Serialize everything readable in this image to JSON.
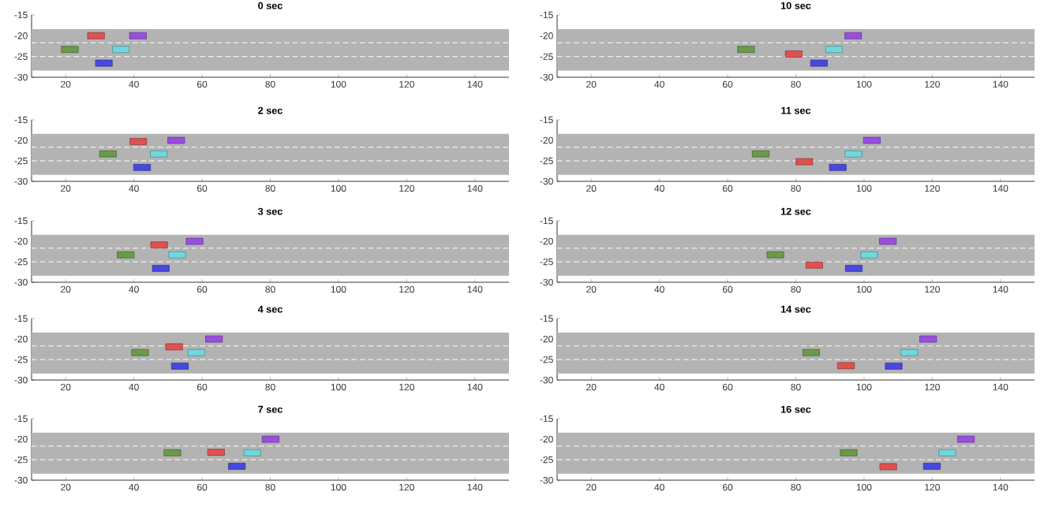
{
  "chart_data": [
    {
      "type": "scatter",
      "title": "0 sec",
      "marker": "square",
      "xlim": [
        10,
        150
      ],
      "ylim": [
        -30,
        -15
      ],
      "xticks": [
        20,
        40,
        60,
        80,
        100,
        120,
        140
      ],
      "yticks": [
        -30,
        -25,
        -20,
        -15
      ],
      "bands": [
        {
          "axis": "y",
          "from": -28.4,
          "to": -18.4,
          "color": "#b3b3b3"
        }
      ],
      "ref_lines": [
        {
          "axis": "y",
          "value": -21.7,
          "color": "#ffffff",
          "line_style": "dashed"
        },
        {
          "axis": "y",
          "value": -25,
          "color": "#ffffff",
          "line_style": "dashed"
        }
      ],
      "series": [
        {
          "color": "#6b9a4a",
          "x": [
            21.2
          ],
          "values": [
            -23.3
          ]
        },
        {
          "color": "#e05050",
          "x": [
            28.9
          ],
          "values": [
            -20
          ]
        },
        {
          "color": "#4848e0",
          "x": [
            31.2
          ],
          "values": [
            -26.6
          ]
        },
        {
          "color": "#70d8dc",
          "x": [
            36.2
          ],
          "values": [
            -23.3
          ]
        },
        {
          "color": "#9b4de0",
          "x": [
            41.2
          ],
          "values": [
            -20
          ]
        }
      ]
    },
    {
      "type": "scatter",
      "title": "10 sec",
      "marker": "square",
      "xlim": [
        10,
        150
      ],
      "ylim": [
        -30,
        -15
      ],
      "xticks": [
        20,
        40,
        60,
        80,
        100,
        120,
        140
      ],
      "yticks": [
        -30,
        -25,
        -20,
        -15
      ],
      "bands": [
        {
          "axis": "y",
          "from": -28.4,
          "to": -18.4,
          "color": "#b3b3b3"
        }
      ],
      "ref_lines": [
        {
          "axis": "y",
          "value": -21.7,
          "color": "#ffffff",
          "line_style": "dashed"
        },
        {
          "axis": "y",
          "value": -25,
          "color": "#ffffff",
          "line_style": "dashed"
        }
      ],
      "series": [
        {
          "color": "#6b9a4a",
          "x": [
            65.4
          ],
          "values": [
            -23.3
          ]
        },
        {
          "color": "#e05050",
          "x": [
            79.4
          ],
          "values": [
            -24.4
          ]
        },
        {
          "color": "#4848e0",
          "x": [
            86.8
          ],
          "values": [
            -26.6
          ]
        },
        {
          "color": "#70d8dc",
          "x": [
            91.2
          ],
          "values": [
            -23.3
          ]
        },
        {
          "color": "#9b4de0",
          "x": [
            96.8
          ],
          "values": [
            -20
          ]
        }
      ]
    },
    {
      "type": "scatter",
      "title": "2 sec",
      "marker": "square",
      "xlim": [
        10,
        150
      ],
      "ylim": [
        -30,
        -15
      ],
      "xticks": [
        20,
        40,
        60,
        80,
        100,
        120,
        140
      ],
      "yticks": [
        -30,
        -25,
        -20,
        -15
      ],
      "bands": [
        {
          "axis": "y",
          "from": -28.4,
          "to": -18.4,
          "color": "#b3b3b3"
        }
      ],
      "ref_lines": [
        {
          "axis": "y",
          "value": -21.7,
          "color": "#ffffff",
          "line_style": "dashed"
        },
        {
          "axis": "y",
          "value": -25,
          "color": "#ffffff",
          "line_style": "dashed"
        }
      ],
      "series": [
        {
          "color": "#6b9a4a",
          "x": [
            32.4
          ],
          "values": [
            -23.3
          ]
        },
        {
          "color": "#e05050",
          "x": [
            41.3
          ],
          "values": [
            -20.3
          ]
        },
        {
          "color": "#4848e0",
          "x": [
            42.4
          ],
          "values": [
            -26.6
          ]
        },
        {
          "color": "#70d8dc",
          "x": [
            47.3
          ],
          "values": [
            -23.3
          ]
        },
        {
          "color": "#9b4de0",
          "x": [
            52.4
          ],
          "values": [
            -20
          ]
        }
      ]
    },
    {
      "type": "scatter",
      "title": "11 sec",
      "marker": "square",
      "xlim": [
        10,
        150
      ],
      "ylim": [
        -30,
        -15
      ],
      "xticks": [
        20,
        40,
        60,
        80,
        100,
        120,
        140
      ],
      "yticks": [
        -30,
        -25,
        -20,
        -15
      ],
      "bands": [
        {
          "axis": "y",
          "from": -28.4,
          "to": -18.4,
          "color": "#b3b3b3"
        }
      ],
      "ref_lines": [
        {
          "axis": "y",
          "value": -21.7,
          "color": "#ffffff",
          "line_style": "dashed"
        },
        {
          "axis": "y",
          "value": -25,
          "color": "#ffffff",
          "line_style": "dashed"
        }
      ],
      "series": [
        {
          "color": "#6b9a4a",
          "x": [
            69.7
          ],
          "values": [
            -23.3
          ]
        },
        {
          "color": "#e05050",
          "x": [
            82.5
          ],
          "values": [
            -25.2
          ]
        },
        {
          "color": "#4848e0",
          "x": [
            92.3
          ],
          "values": [
            -26.6
          ]
        },
        {
          "color": "#70d8dc",
          "x": [
            96.9
          ],
          "values": [
            -23.3
          ]
        },
        {
          "color": "#9b4de0",
          "x": [
            102.3
          ],
          "values": [
            -20
          ]
        }
      ]
    },
    {
      "type": "scatter",
      "title": "3 sec",
      "marker": "square",
      "xlim": [
        10,
        150
      ],
      "ylim": [
        -30,
        -15
      ],
      "xticks": [
        20,
        40,
        60,
        80,
        100,
        120,
        140
      ],
      "yticks": [
        -30,
        -25,
        -20,
        -15
      ],
      "bands": [
        {
          "axis": "y",
          "from": -28.4,
          "to": -18.4,
          "color": "#b3b3b3"
        }
      ],
      "ref_lines": [
        {
          "axis": "y",
          "value": -21.7,
          "color": "#ffffff",
          "line_style": "dashed"
        },
        {
          "axis": "y",
          "value": -25,
          "color": "#ffffff",
          "line_style": "dashed"
        }
      ],
      "series": [
        {
          "color": "#6b9a4a",
          "x": [
            37.6
          ],
          "values": [
            -23.3
          ]
        },
        {
          "color": "#e05050",
          "x": [
            47.4
          ],
          "values": [
            -20.9
          ]
        },
        {
          "color": "#4848e0",
          "x": [
            47.9
          ],
          "values": [
            -26.6
          ]
        },
        {
          "color": "#70d8dc",
          "x": [
            52.7
          ],
          "values": [
            -23.3
          ]
        },
        {
          "color": "#9b4de0",
          "x": [
            57.8
          ],
          "values": [
            -20
          ]
        }
      ]
    },
    {
      "type": "scatter",
      "title": "12 sec",
      "marker": "square",
      "xlim": [
        10,
        150
      ],
      "ylim": [
        -30,
        -15
      ],
      "xticks": [
        20,
        40,
        60,
        80,
        100,
        120,
        140
      ],
      "yticks": [
        -30,
        -25,
        -20,
        -15
      ],
      "bands": [
        {
          "axis": "y",
          "from": -28.4,
          "to": -18.4,
          "color": "#b3b3b3"
        }
      ],
      "ref_lines": [
        {
          "axis": "y",
          "value": -21.7,
          "color": "#ffffff",
          "line_style": "dashed"
        },
        {
          "axis": "y",
          "value": -25,
          "color": "#ffffff",
          "line_style": "dashed"
        }
      ],
      "series": [
        {
          "color": "#6b9a4a",
          "x": [
            74
          ],
          "values": [
            -23.3
          ]
        },
        {
          "color": "#e05050",
          "x": [
            85.4
          ],
          "values": [
            -25.8
          ]
        },
        {
          "color": "#4848e0",
          "x": [
            97
          ],
          "values": [
            -26.6
          ]
        },
        {
          "color": "#70d8dc",
          "x": [
            101.5
          ],
          "values": [
            -23.3
          ]
        },
        {
          "color": "#9b4de0",
          "x": [
            107
          ],
          "values": [
            -20
          ]
        }
      ]
    },
    {
      "type": "scatter",
      "title": "4 sec",
      "marker": "square",
      "xlim": [
        10,
        150
      ],
      "ylim": [
        -30,
        -15
      ],
      "xticks": [
        20,
        40,
        60,
        80,
        100,
        120,
        140
      ],
      "yticks": [
        -30,
        -25,
        -20,
        -15
      ],
      "bands": [
        {
          "axis": "y",
          "from": -28.4,
          "to": -18.4,
          "color": "#b3b3b3"
        }
      ],
      "ref_lines": [
        {
          "axis": "y",
          "value": -21.7,
          "color": "#ffffff",
          "line_style": "dashed"
        },
        {
          "axis": "y",
          "value": -25,
          "color": "#ffffff",
          "line_style": "dashed"
        }
      ],
      "series": [
        {
          "color": "#6b9a4a",
          "x": [
            41.8
          ],
          "values": [
            -23.3
          ]
        },
        {
          "color": "#e05050",
          "x": [
            51.8
          ],
          "values": [
            -21.9
          ]
        },
        {
          "color": "#4848e0",
          "x": [
            53.5
          ],
          "values": [
            -26.6
          ]
        },
        {
          "color": "#70d8dc",
          "x": [
            58.3
          ],
          "values": [
            -23.3
          ]
        },
        {
          "color": "#9b4de0",
          "x": [
            63.5
          ],
          "values": [
            -20
          ]
        }
      ]
    },
    {
      "type": "scatter",
      "title": "14 sec",
      "marker": "square",
      "xlim": [
        10,
        150
      ],
      "ylim": [
        -30,
        -15
      ],
      "xticks": [
        20,
        40,
        60,
        80,
        100,
        120,
        140
      ],
      "yticks": [
        -30,
        -25,
        -20,
        -15
      ],
      "bands": [
        {
          "axis": "y",
          "from": -28.4,
          "to": -18.4,
          "color": "#b3b3b3"
        }
      ],
      "ref_lines": [
        {
          "axis": "y",
          "value": -21.7,
          "color": "#ffffff",
          "line_style": "dashed"
        },
        {
          "axis": "y",
          "value": -25,
          "color": "#ffffff",
          "line_style": "dashed"
        }
      ],
      "series": [
        {
          "color": "#6b9a4a",
          "x": [
            84.5
          ],
          "values": [
            -23.3
          ]
        },
        {
          "color": "#e05050",
          "x": [
            94.7
          ],
          "values": [
            -26.5
          ]
        },
        {
          "color": "#4848e0",
          "x": [
            108.7
          ],
          "values": [
            -26.6
          ]
        },
        {
          "color": "#70d8dc",
          "x": [
            113.3
          ],
          "values": [
            -23.3
          ]
        },
        {
          "color": "#9b4de0",
          "x": [
            118.8
          ],
          "values": [
            -20
          ]
        }
      ]
    },
    {
      "type": "scatter",
      "title": "7 sec",
      "marker": "square",
      "xlim": [
        10,
        150
      ],
      "ylim": [
        -30,
        -15
      ],
      "xticks": [
        20,
        40,
        60,
        80,
        100,
        120,
        140
      ],
      "yticks": [
        -30,
        -25,
        -20,
        -15
      ],
      "bands": [
        {
          "axis": "y",
          "from": -28.4,
          "to": -18.4,
          "color": "#b3b3b3"
        }
      ],
      "ref_lines": [
        {
          "axis": "y",
          "value": -21.7,
          "color": "#ffffff",
          "line_style": "dashed"
        },
        {
          "axis": "y",
          "value": -25,
          "color": "#ffffff",
          "line_style": "dashed"
        }
      ],
      "series": [
        {
          "color": "#6b9a4a",
          "x": [
            51.3
          ],
          "values": [
            -23.3
          ]
        },
        {
          "color": "#e05050",
          "x": [
            64.1
          ],
          "values": [
            -23.2
          ]
        },
        {
          "color": "#4848e0",
          "x": [
            70.2
          ],
          "values": [
            -26.6
          ]
        },
        {
          "color": "#70d8dc",
          "x": [
            74.7
          ],
          "values": [
            -23.3
          ]
        },
        {
          "color": "#9b4de0",
          "x": [
            80.1
          ],
          "values": [
            -20
          ]
        }
      ]
    },
    {
      "type": "scatter",
      "title": "16 sec",
      "marker": "square",
      "xlim": [
        10,
        150
      ],
      "ylim": [
        -30,
        -15
      ],
      "xticks": [
        20,
        40,
        60,
        80,
        100,
        120,
        140
      ],
      "yticks": [
        -30,
        -25,
        -20,
        -15
      ],
      "bands": [
        {
          "axis": "y",
          "from": -28.4,
          "to": -18.4,
          "color": "#b3b3b3"
        }
      ],
      "ref_lines": [
        {
          "axis": "y",
          "value": -21.7,
          "color": "#ffffff",
          "line_style": "dashed"
        },
        {
          "axis": "y",
          "value": -25,
          "color": "#ffffff",
          "line_style": "dashed"
        }
      ],
      "series": [
        {
          "color": "#6b9a4a",
          "x": [
            95.5
          ],
          "values": [
            -23.3
          ]
        },
        {
          "color": "#e05050",
          "x": [
            107.1
          ],
          "values": [
            -26.7
          ]
        },
        {
          "color": "#4848e0",
          "x": [
            119.9
          ],
          "values": [
            -26.6
          ]
        },
        {
          "color": "#70d8dc",
          "x": [
            124.4
          ],
          "values": [
            -23.3
          ]
        },
        {
          "color": "#9b4de0",
          "x": [
            129.9
          ],
          "values": [
            -20
          ]
        }
      ]
    }
  ]
}
